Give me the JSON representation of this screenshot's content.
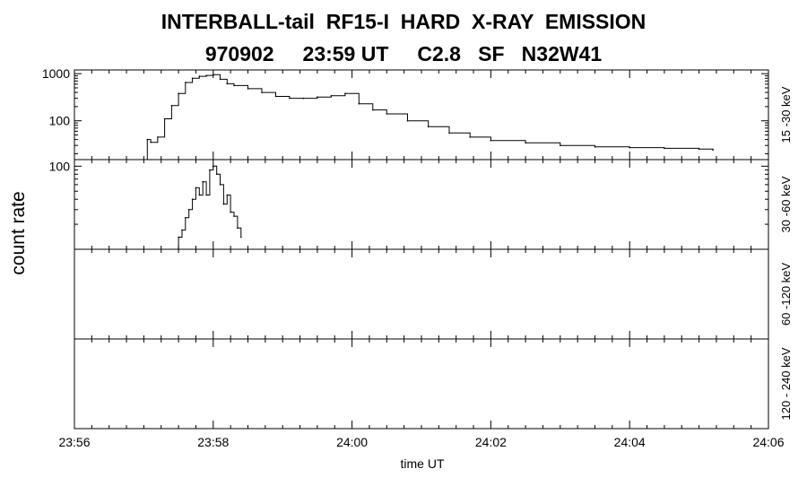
{
  "chart_data": {
    "type": "line",
    "title": "INTERBALL-tail  RF15-I  HARD  X-RAY  EMISSION",
    "subtitle": "970902     23:59 UT     C2.8   SF   N32W41",
    "xlabel": "time UT",
    "ylabel": "count rate",
    "x_ticks": [
      "23:56",
      "23:58",
      "24:00",
      "24:02",
      "24:04",
      "24:06"
    ],
    "x_range_minutes": [
      0,
      10
    ],
    "panels": [
      {
        "channel": "15 -30 keV",
        "scale": "log",
        "ylim": [
          15,
          1200
        ],
        "y_ticks": [
          {
            "value": 100,
            "label": "100"
          },
          {
            "value": 1000,
            "label": "1000"
          }
        ],
        "series": [
          {
            "t": [
              1.05,
              1.1,
              1.2,
              1.3,
              1.4,
              1.5,
              1.6,
              1.7,
              1.8,
              1.9,
              2.0,
              2.1,
              2.2,
              2.3,
              2.5,
              2.7,
              2.9,
              3.1,
              3.3,
              3.5,
              3.7,
              3.9,
              4.1,
              4.3,
              4.5,
              4.8,
              5.1,
              5.4,
              5.7,
              6.0,
              6.5,
              7.0,
              7.5,
              8.0,
              8.5,
              9.0,
              9.2
            ],
            "counts": [
              40,
              35,
              45,
              110,
              210,
              380,
              650,
              800,
              880,
              920,
              950,
              760,
              610,
              560,
              480,
              400,
              330,
              300,
              300,
              320,
              340,
              380,
              230,
              170,
              140,
              100,
              75,
              55,
              45,
              38,
              34,
              30,
              28,
              27,
              26,
              25,
              24
            ]
          }
        ]
      },
      {
        "channel": "30 -60 keV",
        "scale": "log",
        "ylim": [
          10,
          120
        ],
        "y_ticks": [
          {
            "value": 100,
            "label": "100"
          }
        ],
        "series": [
          {
            "t": [
              1.5,
              1.55,
              1.6,
              1.65,
              1.7,
              1.75,
              1.8,
              1.85,
              1.9,
              1.95,
              2.0,
              2.05,
              2.1,
              2.15,
              2.2,
              2.25,
              2.3,
              2.35,
              2.4
            ],
            "counts": [
              14,
              17,
              24,
              30,
              40,
              55,
              45,
              65,
              45,
              90,
              100,
              80,
              60,
              35,
              45,
              28,
              25,
              18,
              14
            ]
          }
        ]
      },
      {
        "channel": "60 -120 keV",
        "scale": "log",
        "ylim": [
          10,
          120
        ],
        "y_ticks": [],
        "series": [
          {
            "t": [],
            "counts": []
          }
        ]
      },
      {
        "channel": "120 - 240 keV",
        "scale": "log",
        "ylim": [
          10,
          120
        ],
        "y_ticks": [],
        "series": [
          {
            "t": [],
            "counts": []
          }
        ]
      }
    ]
  }
}
